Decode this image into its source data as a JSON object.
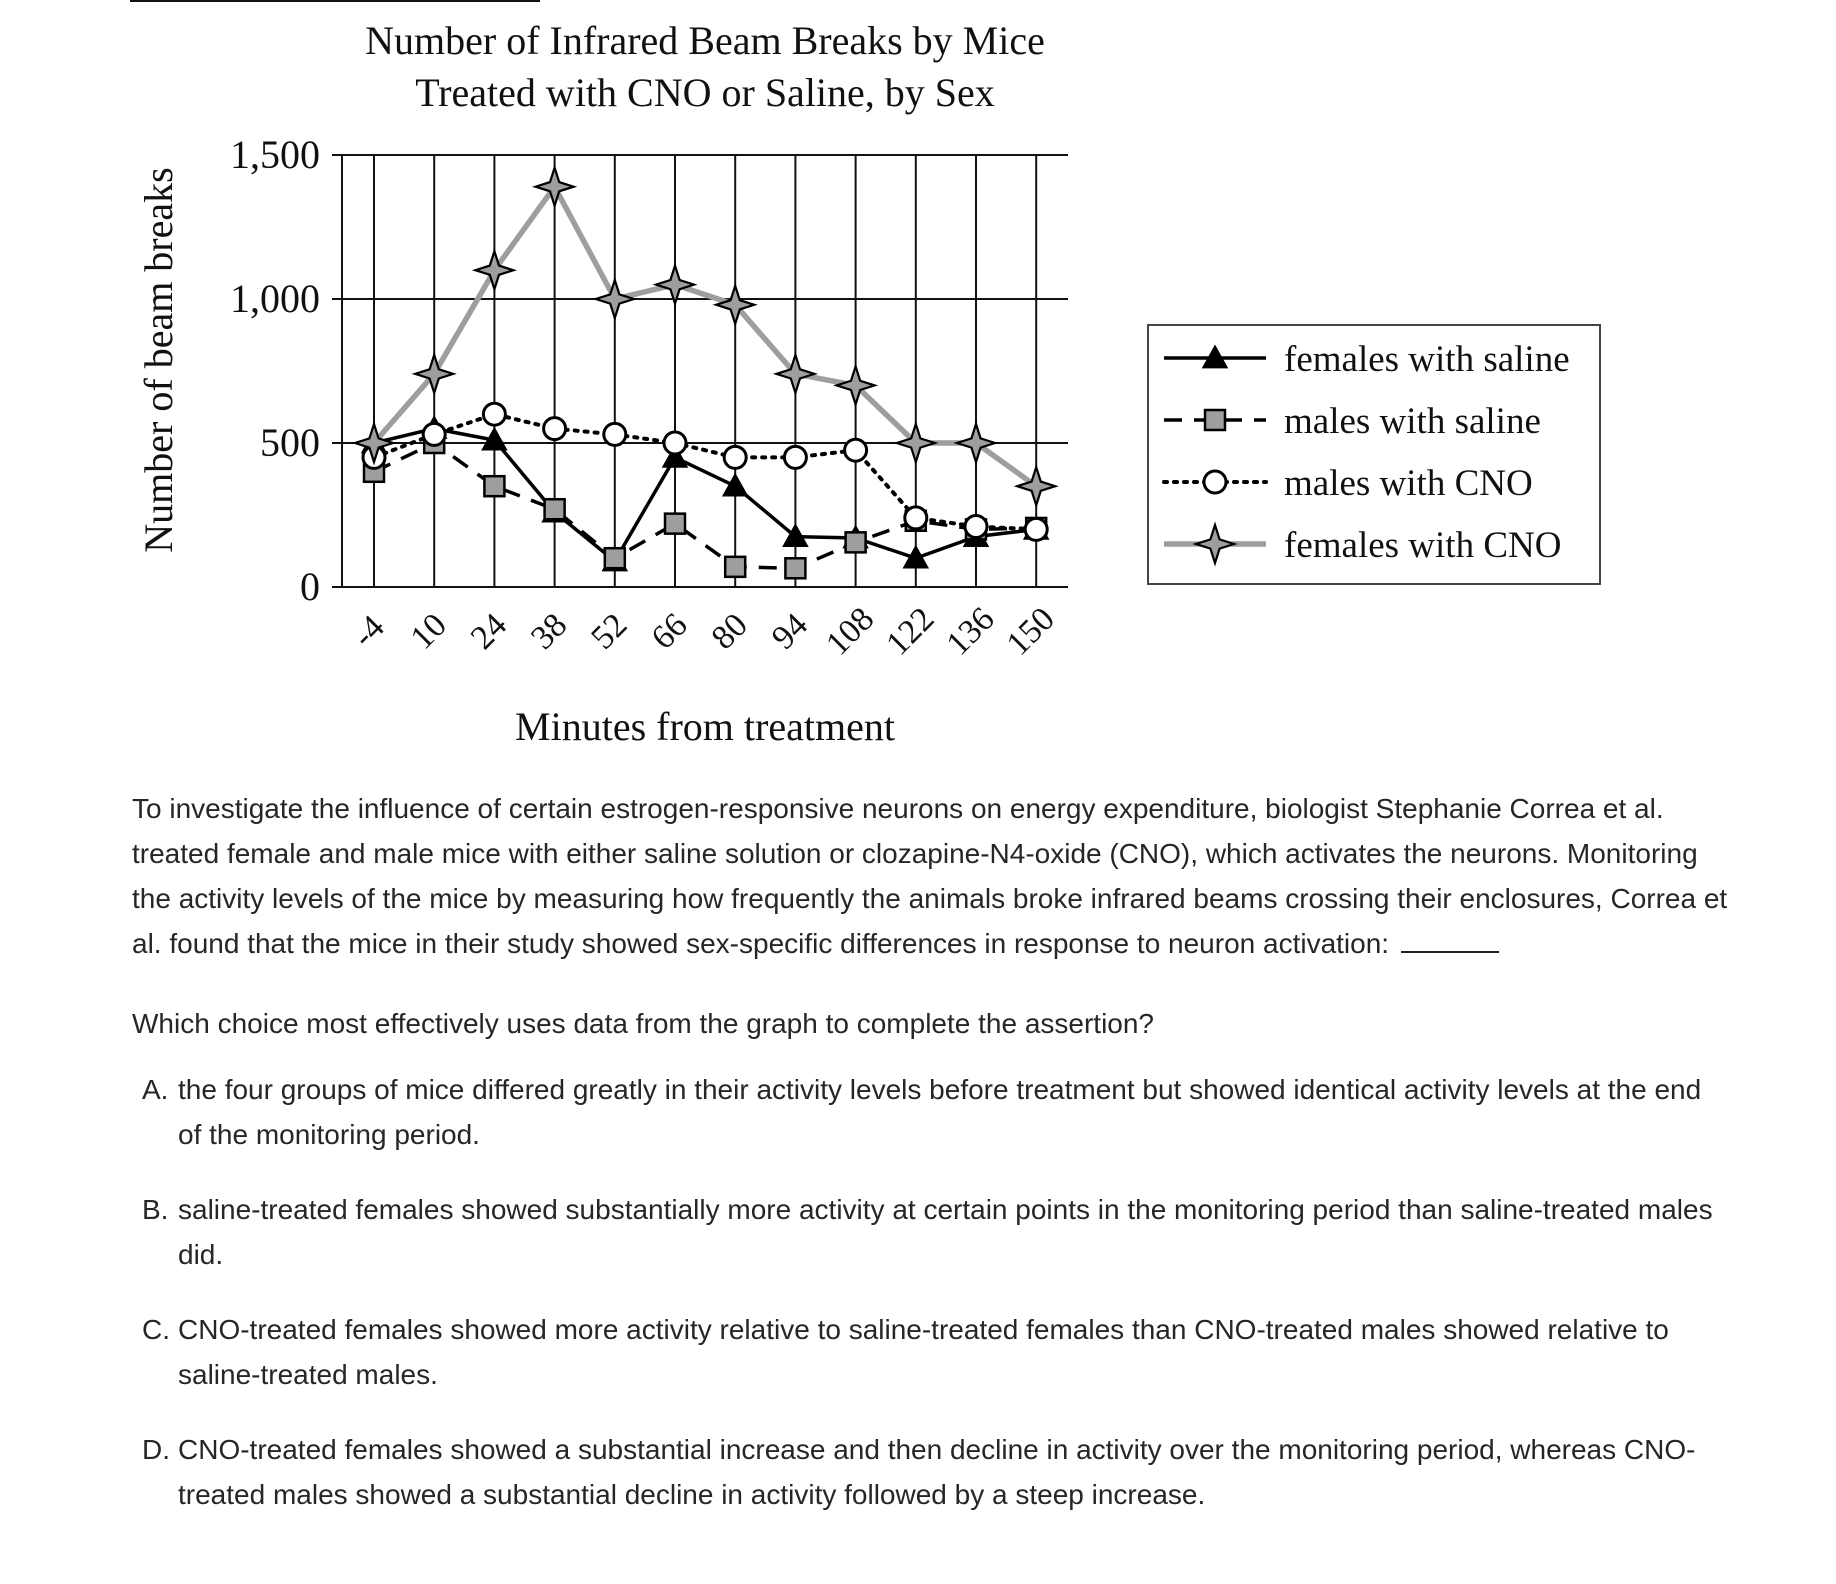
{
  "chart_data": {
    "type": "line",
    "title": "Number of Infrared Beam Breaks by Mice\nTreated with CNO or Saline, by Sex",
    "xlabel": "Minutes from treatment",
    "ylabel": "Number of beam breaks",
    "ylim": [
      0,
      1500
    ],
    "yticks": [
      0,
      500,
      1000,
      1500
    ],
    "ytick_labels": [
      "0",
      "500",
      "1,000",
      "1,500"
    ],
    "x": [
      -4,
      10,
      24,
      38,
      52,
      66,
      80,
      94,
      108,
      122,
      136,
      150
    ],
    "x_labels": [
      "-4",
      "10",
      "24",
      "38",
      "52",
      "66",
      "80",
      "94",
      "108",
      "122",
      "136",
      "150"
    ],
    "grid": true,
    "legend_position": "right",
    "series": [
      {
        "name": "females with saline",
        "marker": "triangle",
        "line": "solid",
        "color": "#000000",
        "values": [
          500,
          550,
          510,
          260,
          90,
          450,
          350,
          175,
          170,
          100,
          175,
          200
        ]
      },
      {
        "name": "males with saline",
        "marker": "square",
        "line": "dashed",
        "color": "#000000",
        "values": [
          400,
          500,
          350,
          270,
          100,
          220,
          70,
          65,
          155,
          230,
          200,
          205
        ]
      },
      {
        "name": "males with CNO",
        "marker": "circle",
        "line": "dotted",
        "color": "#000000",
        "values": [
          450,
          530,
          600,
          550,
          530,
          500,
          450,
          450,
          475,
          240,
          210,
          200
        ]
      },
      {
        "name": "females with CNO",
        "marker": "star",
        "line": "solid",
        "color": "#999999",
        "values": [
          500,
          740,
          1100,
          1390,
          1000,
          1050,
          980,
          740,
          700,
          500,
          500,
          350
        ]
      }
    ]
  },
  "question": {
    "prompt": "To investigate the influence of certain estrogen-responsive neurons on energy expenditure, biologist Stephanie Correa et al. treated female and male mice with either saline solution or clozapine-N4-oxide (CNO), which activates the neurons. Monitoring the activity levels of the mice by measuring how frequently the animals broke infrared beams crossing their enclosures, Correa et al. found that the mice in their study showed sex-specific differences in response to neuron activation:",
    "ask": "Which choice most effectively uses data from the graph to complete the assertion?",
    "choices": [
      {
        "letter": "A.",
        "text": "the four groups of mice differed greatly in their activity levels before treatment but showed identical activity levels at the end of the monitoring period."
      },
      {
        "letter": "B.",
        "text": "saline-treated females showed substantially more activity at certain points in the monitoring period than saline-treated males did."
      },
      {
        "letter": "C.",
        "text": "CNO-treated females showed more activity relative to saline-treated females than CNO-treated males showed relative to saline-treated males."
      },
      {
        "letter": "D.",
        "text": "CNO-treated females showed a substantial increase and then decline in activity over the monitoring period, whereas CNO-treated males showed a substantial decline in activity followed by a steep increase."
      }
    ]
  }
}
